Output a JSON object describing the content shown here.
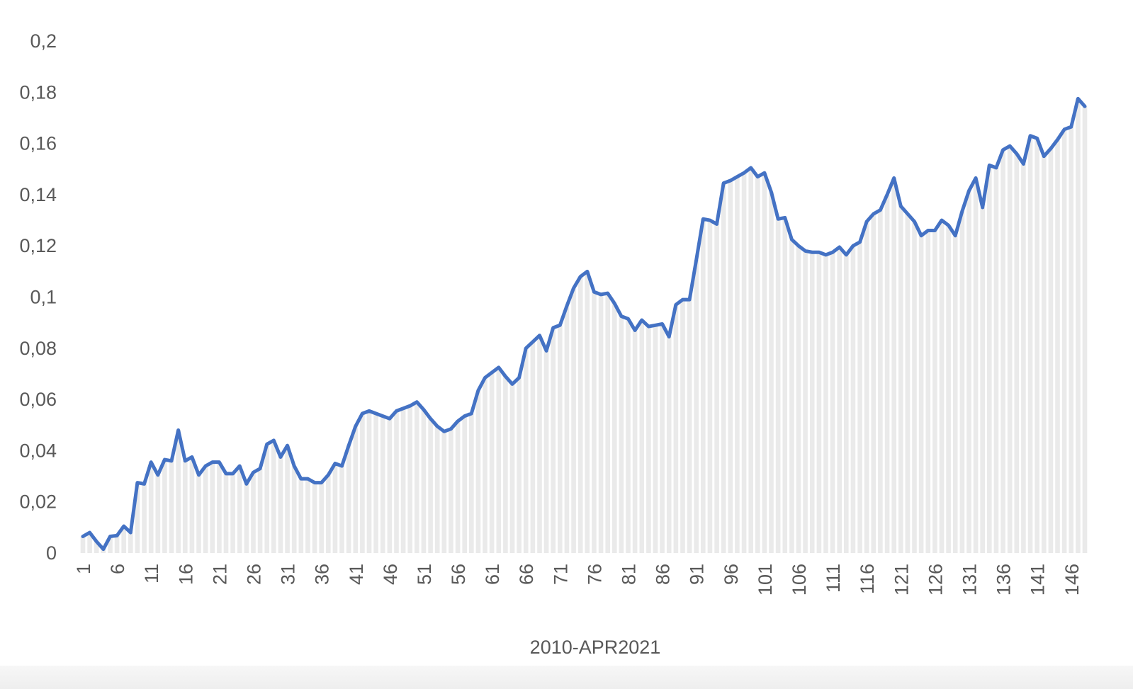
{
  "colors": {
    "line": "#4472C4",
    "area_fill": "#D9D9D9",
    "text": "#595959"
  },
  "chart_data": {
    "type": "line",
    "title": "",
    "xlabel": "2010-APR2021",
    "ylabel": "",
    "ylim": [
      0,
      0.2
    ],
    "yticks": [
      "0",
      "0,02",
      "0,04",
      "0,06",
      "0,08",
      "0,1",
      "0,12",
      "0,14",
      "0,16",
      "0,18",
      "0,2"
    ],
    "ytick_values": [
      0,
      0.02,
      0.04,
      0.06,
      0.08,
      0.1,
      0.12,
      0.14,
      0.16,
      0.18,
      0.2
    ],
    "xtick_values": [
      1,
      6,
      11,
      16,
      21,
      26,
      31,
      36,
      41,
      46,
      51,
      56,
      61,
      66,
      71,
      76,
      81,
      86,
      91,
      96,
      101,
      106,
      111,
      116,
      121,
      126,
      131,
      136,
      141,
      146
    ],
    "xtick_labels": [
      "1",
      "6",
      "11",
      "16",
      "21",
      "26",
      "31",
      "36",
      "41",
      "46",
      "51",
      "56",
      "61",
      "66",
      "71",
      "76",
      "81",
      "86",
      "91",
      "96",
      "101",
      "106",
      "111",
      "116",
      "121",
      "126",
      "131",
      "136",
      "141",
      "146"
    ],
    "grid": false,
    "legend": "none",
    "series": [
      {
        "values": [
          0.0065,
          0.008,
          0.0045,
          0.0015,
          0.0065,
          0.0068,
          0.0105,
          0.008,
          0.0275,
          0.027,
          0.0355,
          0.0305,
          0.0365,
          0.036,
          0.048,
          0.036,
          0.0375,
          0.0305,
          0.034,
          0.0355,
          0.0355,
          0.031,
          0.031,
          0.034,
          0.027,
          0.0315,
          0.033,
          0.0425,
          0.044,
          0.0375,
          0.042,
          0.034,
          0.029,
          0.029,
          0.0275,
          0.0275,
          0.0305,
          0.035,
          0.034,
          0.042,
          0.0495,
          0.0545,
          0.0555,
          0.0545,
          0.0535,
          0.0525,
          0.0555,
          0.0565,
          0.0575,
          0.059,
          0.056,
          0.0525,
          0.0495,
          0.0475,
          0.0485,
          0.0515,
          0.0535,
          0.0545,
          0.0635,
          0.0685,
          0.0705,
          0.0725,
          0.069,
          0.066,
          0.0685,
          0.08,
          0.0825,
          0.085,
          0.079,
          0.088,
          0.089,
          0.0965,
          0.1035,
          0.108,
          0.11,
          0.102,
          0.101,
          0.1015,
          0.0975,
          0.0925,
          0.0915,
          0.087,
          0.091,
          0.0885,
          0.089,
          0.0895,
          0.0845,
          0.097,
          0.099,
          0.099,
          0.1145,
          0.1305,
          0.13,
          0.1285,
          0.1445,
          0.1455,
          0.147,
          0.1485,
          0.1505,
          0.147,
          0.1485,
          0.141,
          0.1305,
          0.131,
          0.1225,
          0.12,
          0.118,
          0.1175,
          0.1175,
          0.1165,
          0.1175,
          0.1195,
          0.1165,
          0.12,
          0.1215,
          0.1295,
          0.1325,
          0.134,
          0.14,
          0.1465,
          0.1355,
          0.1325,
          0.1295,
          0.124,
          0.126,
          0.126,
          0.13,
          0.128,
          0.124,
          0.1335,
          0.1415,
          0.1465,
          0.135,
          0.1515,
          0.1505,
          0.1575,
          0.159,
          0.156,
          0.152,
          0.163,
          0.162,
          0.155,
          0.158,
          0.1615,
          0.1655,
          0.1665,
          0.1775,
          0.1745
        ]
      }
    ]
  }
}
